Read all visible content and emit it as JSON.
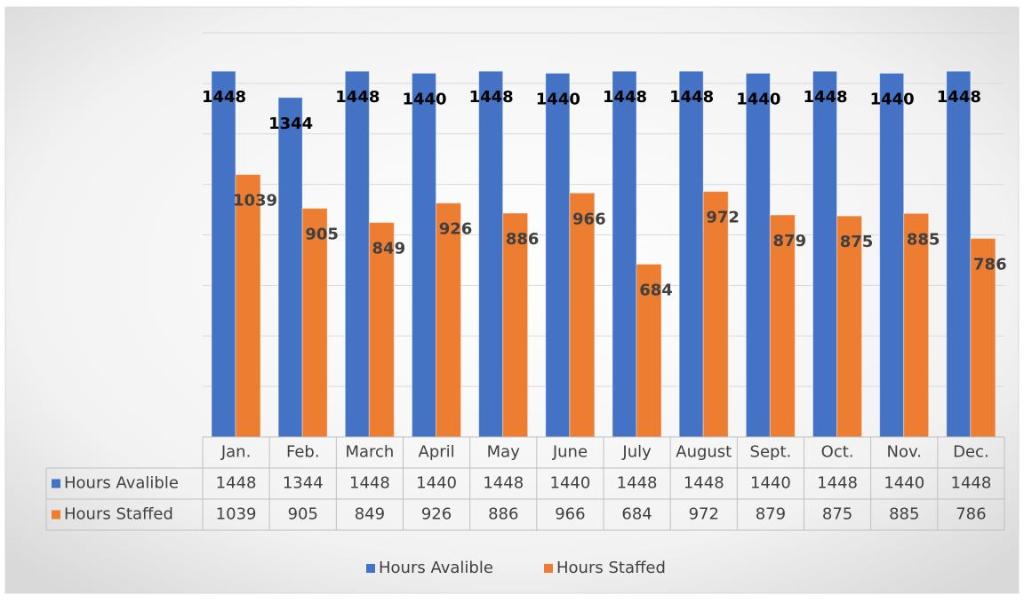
{
  "chart_data": {
    "type": "bar",
    "categories": [
      "Jan.",
      "Feb.",
      "March",
      "April",
      "May",
      "June",
      "July",
      "August",
      "Sept.",
      "Oct.",
      "Nov.",
      "Dec."
    ],
    "series": [
      {
        "name": "Hours Avalible",
        "color": "#4472c4",
        "values": [
          1448,
          1344,
          1448,
          1440,
          1448,
          1440,
          1448,
          1448,
          1440,
          1448,
          1440,
          1448
        ]
      },
      {
        "name": "Hours Staffed",
        "color": "#ed7d31",
        "values": [
          1039,
          905,
          849,
          926,
          886,
          966,
          684,
          972,
          879,
          875,
          885,
          786
        ]
      }
    ],
    "ylim": [
      0,
      1600
    ],
    "yticks": [
      0,
      200,
      400,
      600,
      800,
      1000,
      1200,
      1400,
      1600
    ],
    "grid": true,
    "legend": "bottom"
  }
}
